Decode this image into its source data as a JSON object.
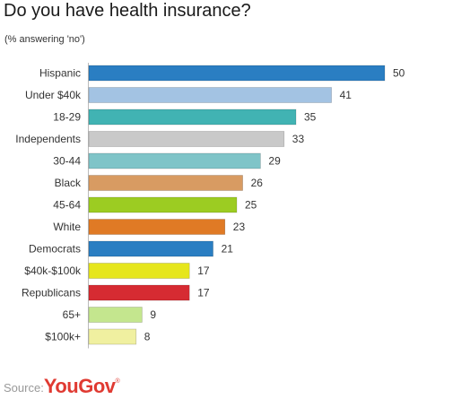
{
  "header": {
    "title": "Do you have health insurance?",
    "subtitle": "(% answering 'no')"
  },
  "footer": {
    "source_label": "Source:",
    "brand": "YouGov",
    "brand_mark": "®",
    "brand_color": "#e03a32"
  },
  "chart_data": {
    "type": "bar",
    "orientation": "horizontal",
    "title": "Do you have health insurance?",
    "subtitle": "(% answering 'no')",
    "categories": [
      "Hispanic",
      "Under $40k",
      "18-29",
      "Independents",
      "30-44",
      "Black",
      "45-64",
      "White",
      "Democrats",
      "$40k-$100k",
      "Republicans",
      "65+",
      "$100k+"
    ],
    "values": [
      50,
      41,
      35,
      33,
      29,
      26,
      25,
      23,
      21,
      17,
      17,
      9,
      8
    ],
    "colors": [
      "#2a7ec2",
      "#a3c3e3",
      "#41b3b3",
      "#c9c9c9",
      "#7fc4c8",
      "#d89b62",
      "#9ccc22",
      "#e07a25",
      "#2a7ec2",
      "#e6e61d",
      "#d62b32",
      "#c4e68e",
      "#f0f0a0"
    ],
    "xlim": [
      0,
      50
    ],
    "data_labels": true,
    "grid": false,
    "legend": "none"
  }
}
